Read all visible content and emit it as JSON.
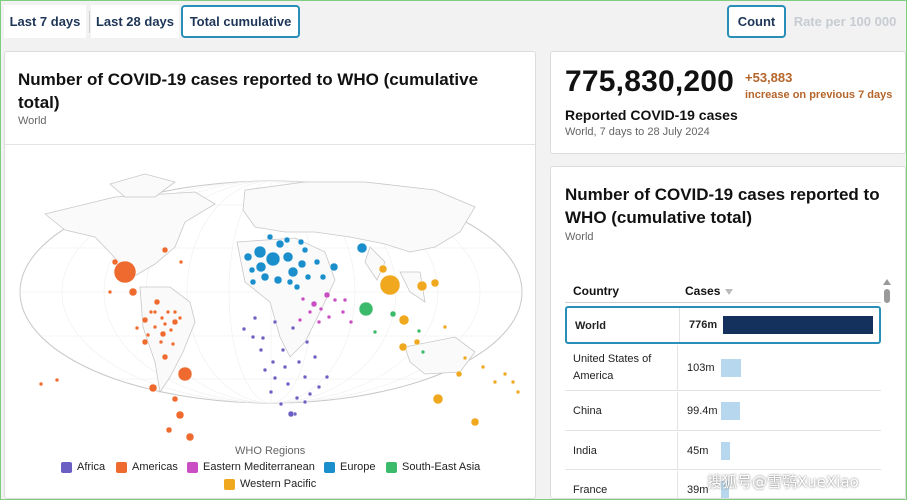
{
  "tabs": {
    "period": [
      "Last 7 days",
      "Last 28 days",
      "Total cumulative"
    ],
    "metric": [
      "Count",
      "Rate per 100 000"
    ]
  },
  "map_panel": {
    "title": "Number of COVID-19 cases reported to WHO (cumulative total)",
    "subtitle": "World",
    "legend_title": "WHO Regions",
    "legend": [
      {
        "label": "Africa",
        "color": "#6b5fc4"
      },
      {
        "label": "Americas",
        "color": "#ee6a2f"
      },
      {
        "label": "Eastern Mediterranean",
        "color": "#c94ec4"
      },
      {
        "label": "Europe",
        "color": "#1a8fcb"
      },
      {
        "label": "South-East Asia",
        "color": "#3cba6b"
      },
      {
        "label": "Western Pacific",
        "color": "#f0a81e"
      }
    ]
  },
  "summary": {
    "total": "775,830,200",
    "delta": "+53,883",
    "delta_label": "increase on previous 7 days",
    "label": "Reported COVID-19 cases",
    "period": "World, 7 days to 28 July 2024"
  },
  "table_panel": {
    "title": "Number of COVID-19 cases reported to WHO (cumulative total)",
    "subtitle": "World",
    "headers": {
      "country": "Country",
      "cases": "Cases"
    },
    "rows": [
      {
        "country": "World",
        "cases": "776m",
        "fraction": 1.0
      },
      {
        "country": "United States of America",
        "cases": "103m",
        "fraction": 0.133
      },
      {
        "country": "China",
        "cases": "99.4m",
        "fraction": 0.128
      },
      {
        "country": "India",
        "cases": "45m",
        "fraction": 0.058
      },
      {
        "country": "France",
        "cases": "39m",
        "fraction": 0.05
      }
    ],
    "colors": {
      "world_bar": "#14305c",
      "country_bar": "#b6d7ee"
    }
  },
  "watermark": "搜狐号@雪鹗XueXiao"
}
